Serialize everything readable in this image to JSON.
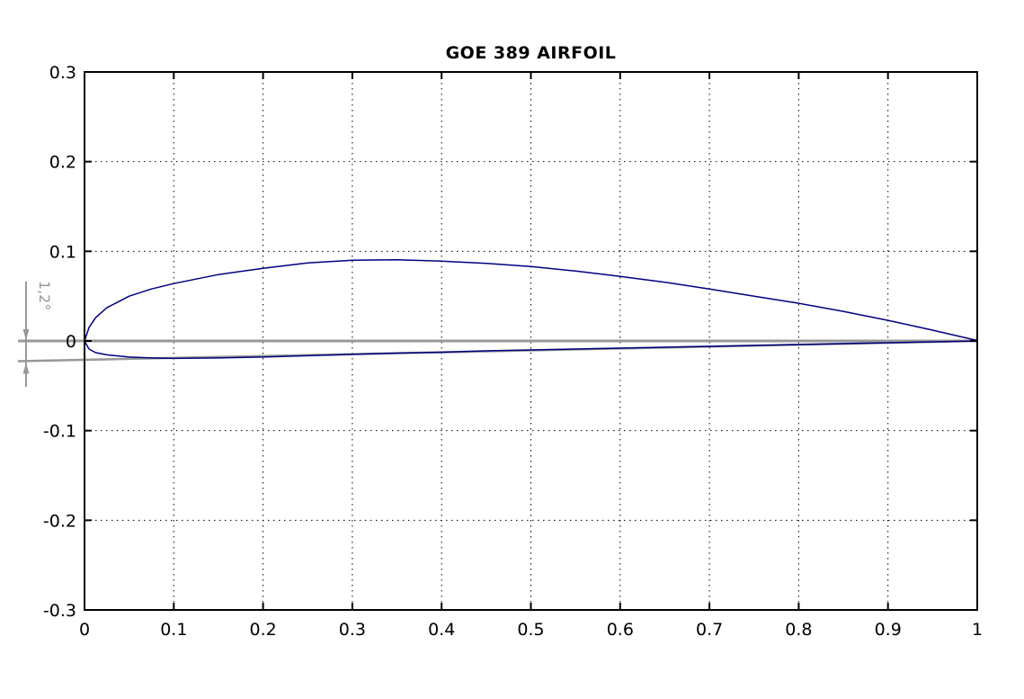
{
  "figure": {
    "background": "#ffffff"
  },
  "chart_data": {
    "type": "line",
    "title": "GOE 389 AIRFOIL",
    "xlabel": "",
    "ylabel": "",
    "xlim": [
      0,
      1
    ],
    "ylim": [
      -0.3,
      0.3
    ],
    "grid": "dotted",
    "legend": "none",
    "colors": {
      "airfoil": "#000080",
      "reference_lines": "#989898",
      "axis": "#000000",
      "grid": "#000000"
    },
    "xticks": {
      "values": [
        0,
        0.1,
        0.2,
        0.3,
        0.4,
        0.5,
        0.6,
        0.7,
        0.8,
        0.9,
        1
      ],
      "labels": [
        "0",
        "0.1",
        "0.2",
        "0.3",
        "0.4",
        "0.5",
        "0.6",
        "0.7",
        "0.8",
        "0.9",
        "1"
      ]
    },
    "yticks": {
      "values": [
        0.3,
        0.2,
        0.1,
        0,
        -0.1,
        -0.2,
        -0.3
      ],
      "labels": [
        "0.3",
        "0.2",
        "0.1",
        "0",
        "-0.1",
        "-0.2",
        "-0.3"
      ]
    },
    "series": [
      {
        "name": "chord-line",
        "color": "#989898",
        "width": 3,
        "x": [
          -0.0745,
          1.0
        ],
        "y": [
          0.0,
          0.0
        ]
      },
      {
        "name": "angle-reference-line",
        "color": "#989898",
        "width": 2.5,
        "x": [
          -0.0745,
          1.0
        ],
        "y": [
          -0.0226,
          0.0
        ]
      },
      {
        "name": "airfoil-upper-surface",
        "color": "#000080",
        "width": 1.5,
        "x": [
          0,
          0.005,
          0.0125,
          0.025,
          0.05,
          0.075,
          0.1,
          0.15,
          0.2,
          0.25,
          0.3,
          0.35,
          0.4,
          0.45,
          0.5,
          0.55,
          0.6,
          0.65,
          0.7,
          0.75,
          0.8,
          0.85,
          0.9,
          0.95,
          1.0
        ],
        "y": [
          0,
          0.015,
          0.026,
          0.037,
          0.05,
          0.058,
          0.064,
          0.074,
          0.081,
          0.087,
          0.09,
          0.0905,
          0.089,
          0.0865,
          0.083,
          0.078,
          0.072,
          0.0655,
          0.058,
          0.05,
          0.042,
          0.033,
          0.023,
          0.012,
          0.0005
        ]
      },
      {
        "name": "airfoil-lower-surface",
        "color": "#000080",
        "width": 1.5,
        "x": [
          0,
          0.005,
          0.0125,
          0.025,
          0.05,
          0.075,
          0.1,
          0.15,
          0.2,
          0.25,
          0.3,
          0.35,
          0.4,
          0.45,
          0.5,
          0.55,
          0.6,
          0.65,
          0.7,
          0.75,
          0.8,
          0.85,
          0.9,
          0.95,
          1.0
        ],
        "y": [
          0,
          -0.009,
          -0.013,
          -0.0155,
          -0.018,
          -0.019,
          -0.0195,
          -0.019,
          -0.018,
          -0.0165,
          -0.015,
          -0.0135,
          -0.0125,
          -0.011,
          -0.01,
          -0.009,
          -0.008,
          -0.007,
          -0.006,
          -0.005,
          -0.004,
          -0.003,
          -0.002,
          -0.001,
          0
        ]
      }
    ],
    "annotation": {
      "label": "1,2°",
      "color": "#989898",
      "x": -0.0655,
      "line_top_y": 0.0663,
      "line_bottom_y": -0.0512,
      "upper_arrow_tip_y": 0.0,
      "lower_arrow_tip_y": -0.0224
    }
  }
}
